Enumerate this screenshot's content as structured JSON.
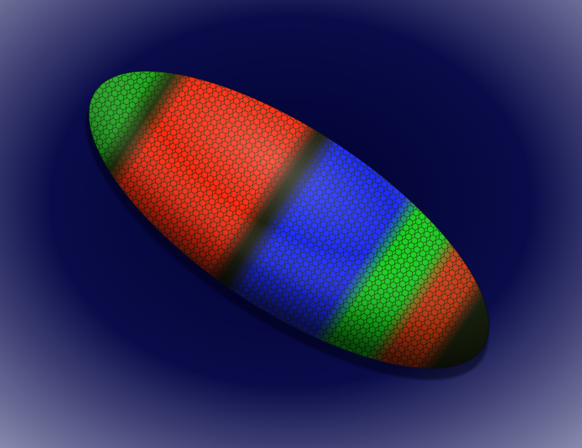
{
  "image": {
    "subject": "embryo-surface-render",
    "background": {
      "center_color": "#00002e",
      "mid_color": "#0a0c4a",
      "edge_color": "#8a8cb0"
    },
    "cell_outline_color": "#1a2a10",
    "bands": [
      {
        "name": "anterior-cap",
        "color": "#1fae1f",
        "from": 0.0,
        "to": 0.1
      },
      {
        "name": "anterior-dark",
        "color": "#2b3a10",
        "from": 0.1,
        "to": 0.14
      },
      {
        "name": "red-band-1",
        "color": "#ff2a10",
        "from": 0.14,
        "to": 0.43
      },
      {
        "name": "dark-gap",
        "color": "#202010",
        "from": 0.43,
        "to": 0.48
      },
      {
        "name": "blue-band",
        "color": "#1f2cff",
        "from": 0.48,
        "to": 0.7
      },
      {
        "name": "green-band",
        "color": "#16d21c",
        "from": 0.7,
        "to": 0.82
      },
      {
        "name": "red-band-2",
        "color": "#e03a10",
        "from": 0.82,
        "to": 0.92
      },
      {
        "name": "posterior-dark",
        "color": "#1c2410",
        "from": 0.92,
        "to": 1.0
      }
    ]
  }
}
